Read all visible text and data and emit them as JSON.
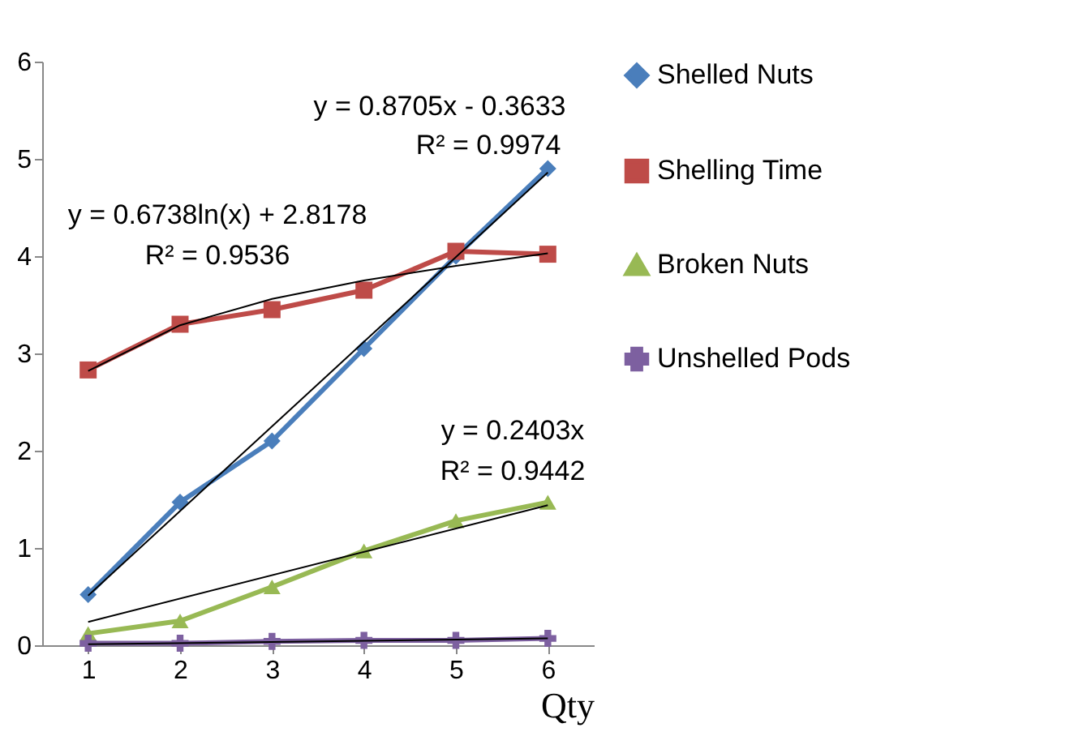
{
  "chart_data": {
    "type": "line",
    "xlim": [
      0.5,
      6.5
    ],
    "xticks": [
      1,
      2,
      3,
      4,
      5,
      6
    ],
    "ylim": [
      0,
      6
    ],
    "yticks": [
      0,
      1,
      2,
      3,
      4,
      5,
      6
    ],
    "xlabel": "Qty",
    "legend": "right",
    "x": [
      1,
      2,
      3,
      4,
      5,
      6
    ],
    "series": [
      {
        "name": "Shelled Nuts",
        "color": "#4a7ebb",
        "marker": "diamond",
        "values": [
          0.52,
          1.47,
          2.1,
          3.05,
          4.0,
          4.9
        ]
      },
      {
        "name": "Shelling Time",
        "color": "#be4b48",
        "marker": "square",
        "values": [
          2.83,
          3.3,
          3.45,
          3.65,
          4.05,
          4.02
        ]
      },
      {
        "name": "Broken Nuts",
        "color": "#98b954",
        "marker": "triangle",
        "values": [
          0.12,
          0.25,
          0.6,
          0.97,
          1.28,
          1.47
        ]
      },
      {
        "name": "Unshelled Pods",
        "color": "#7d60a0",
        "marker": "cross",
        "values": [
          0.02,
          0.02,
          0.04,
          0.05,
          0.05,
          0.07
        ]
      },
      {
        "type": "line",
        "color": "#000000",
        "marker": "none",
        "x": [
          1,
          6
        ],
        "values": [
          0.51,
          4.86
        ]
      },
      {
        "type": "line",
        "color": "#000000",
        "marker": "none",
        "x": [
          1,
          2,
          3,
          4,
          5,
          6
        ],
        "values": [
          2.82,
          3.29,
          3.56,
          3.75,
          3.9,
          4.03
        ]
      },
      {
        "type": "line",
        "color": "#000000",
        "marker": "none",
        "x": [
          1,
          6
        ],
        "values": [
          0.24,
          1.44
        ]
      },
      {
        "type": "line",
        "color": "#000000",
        "marker": "none",
        "x": [
          1,
          6
        ],
        "values": [
          0.01,
          0.07
        ]
      }
    ],
    "annotations": [
      "y = 0.8705x - 0.3633",
      "R² = 0.9974",
      "y = 0.6738ln(x) + 2.8178",
      "R² = 0.9536",
      "y = 0.2403x",
      "R² = 0.9442"
    ]
  }
}
